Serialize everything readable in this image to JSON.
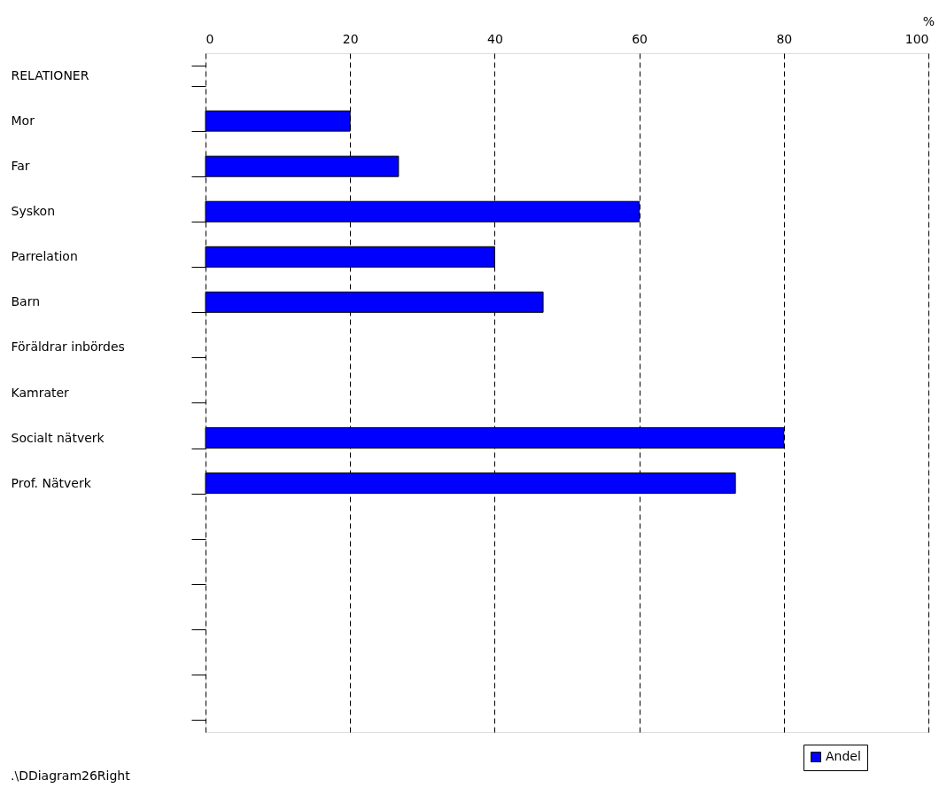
{
  "chart_data": {
    "type": "bar",
    "orientation": "horizontal",
    "categories": [
      "RELATIONER",
      "Mor",
      "Far",
      "Syskon",
      "Parrelation",
      "Barn",
      "Föräldrar inbördes",
      "Kamrater",
      "Socialt nätverk",
      "Prof. Nätverk",
      null,
      null,
      null,
      null,
      null
    ],
    "series": [
      {
        "name": "Andel",
        "color": "#0000ff",
        "values": [
          null,
          20,
          26.7,
          60,
          40,
          46.7,
          null,
          null,
          80,
          73.3,
          null,
          null,
          null,
          null,
          null
        ]
      }
    ],
    "xlabel": "%",
    "xlim": [
      0,
      100
    ],
    "xticks": [
      0,
      20,
      40,
      60,
      80,
      100
    ],
    "grid": "x",
    "legend": "bottom right",
    "annotations": [
      ".\\DDiagram26Right"
    ]
  }
}
